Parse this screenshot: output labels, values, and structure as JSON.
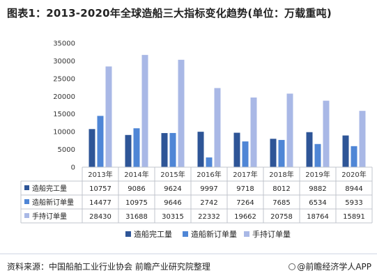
{
  "title": "图表1：2013-2020年全球造船三大指标变化趋势(单位：万载重吨)",
  "source": "资料来源：中国船舶工业行业协会 前瞻产业研究院整理",
  "brand": "@前瞻经济学人APP",
  "chart_data": {
    "type": "bar",
    "title": "图表1：2013-2020年全球造船三大指标变化趋势(单位：万载重吨)",
    "categories": [
      "2013年",
      "2014年",
      "2015年",
      "2016年",
      "2017年",
      "2018年",
      "2019年",
      "2020年"
    ],
    "series": [
      {
        "name": "造船完工量",
        "color": "#2e5597",
        "values": [
          10757,
          9086,
          9624,
          9997,
          9718,
          8012,
          9882,
          8944
        ]
      },
      {
        "name": "造船新订单量",
        "color": "#4f86d6",
        "values": [
          14477,
          10975,
          9646,
          2742,
          7264,
          7685,
          6534,
          5933
        ]
      },
      {
        "name": "手持订单量",
        "color": "#a9b8e6",
        "values": [
          28430,
          31688,
          30315,
          22332,
          19662,
          20758,
          18764,
          15891
        ]
      }
    ],
    "ylim": [
      0,
      35000
    ],
    "yticks": [
      0,
      5000,
      10000,
      15000,
      20000,
      25000,
      30000,
      35000
    ],
    "grid": false,
    "legend": "bottom",
    "data_table": true
  }
}
